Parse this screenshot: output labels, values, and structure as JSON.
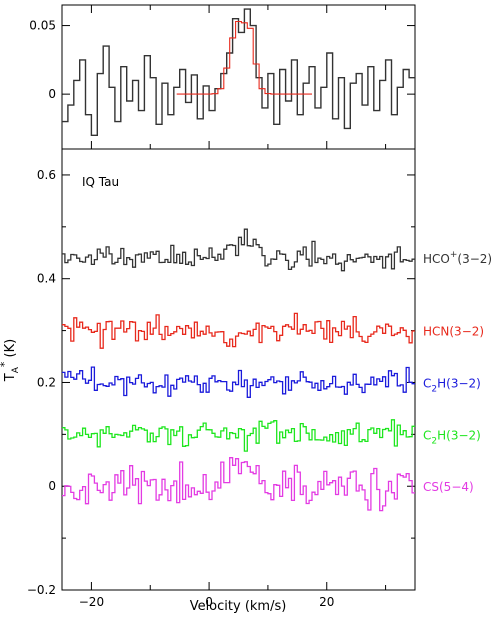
{
  "chart_data": [
    {
      "type": "line",
      "panel": "top",
      "step": true,
      "xlim": [
        -25,
        35
      ],
      "ylim": [
        -0.04,
        0.065
      ],
      "y_ticks": [
        0,
        0.05
      ],
      "y_tick_labels": [
        "0",
        "0.05"
      ],
      "series": [
        {
          "color": "#333333",
          "x": [
            -24.5,
            -23.5,
            -22.5,
            -21.5,
            -20.5,
            -19.5,
            -18.5,
            -17.5,
            -16.5,
            -15.5,
            -14.5,
            -13.5,
            -12.5,
            -11.5,
            -10.5,
            -9.5,
            -8.5,
            -7.5,
            -6.5,
            -5.5,
            -4.5,
            -3.5,
            -2.5,
            -1.5,
            -0.5,
            0.5,
            1.5,
            2.5,
            3.5,
            4.5,
            5.5,
            6.5,
            7.5,
            8.5,
            9.5,
            10.5,
            11.5,
            12.5,
            13.5,
            14.5,
            15.5,
            16.5,
            17.5,
            18.5,
            19.5,
            20.5,
            21.5,
            22.5,
            23.5,
            24.5,
            25.5,
            26.5,
            27.5,
            28.5,
            29.5,
            30.5,
            31.5,
            32.5,
            33.5,
            34.5
          ],
          "values": [
            -0.02,
            -0.008,
            0.01,
            0.025,
            -0.015,
            -0.03,
            0.015,
            0.035,
            0.005,
            -0.02,
            0.02,
            -0.005,
            0.01,
            -0.012,
            0.028,
            0.012,
            -0.022,
            0.008,
            -0.015,
            0.005,
            0.018,
            -0.006,
            0.014,
            -0.018,
            0.006,
            -0.012,
            0.004,
            0.015,
            0.03,
            0.055,
            0.045,
            0.062,
            0.05,
            0.012,
            -0.01,
            0.015,
            -0.022,
            0.018,
            -0.005,
            0.025,
            -0.015,
            0.008,
            0.02,
            -0.01,
            0.005,
            0.03,
            -0.018,
            0.012,
            -0.025,
            0.008,
            0.015,
            -0.008,
            0.02,
            -0.012,
            0.01,
            0.025,
            -0.015,
            0.005,
            0.018,
            0.012
          ]
        },
        {
          "color": "#e8291c",
          "x": [
            -5,
            -4,
            -3,
            -2,
            -1,
            0,
            1,
            2,
            3,
            4,
            5,
            6,
            7,
            8,
            9,
            10,
            11,
            12,
            13,
            14,
            15,
            16,
            17
          ],
          "values": [
            0,
            0,
            0,
            0,
            0,
            0,
            0.0003,
            0.004,
            0.019,
            0.041,
            0.053,
            0.052,
            0.048,
            0.022,
            0.004,
            0.0004,
            0,
            0,
            0,
            0,
            0,
            0,
            0
          ]
        }
      ]
    },
    {
      "type": "line",
      "panel": "bottom",
      "step": true,
      "title": "IQ Tau",
      "xlabel": "Velocity (km/s)",
      "ylabel": "T_A* (K)",
      "xlim": [
        -25,
        35
      ],
      "ylim": [
        -0.2,
        0.65
      ],
      "x_ticks": [
        -20,
        0,
        20
      ],
      "x_tick_labels": [
        "−20",
        "0",
        "20"
      ],
      "y_ticks": [
        -0.2,
        0,
        0.2,
        0.4,
        0.6
      ],
      "y_tick_labels": [
        "−0.2",
        "0",
        "0.2",
        "0.4",
        "0.6"
      ],
      "series": [
        {
          "name": "HCO+(3−2)",
          "label_main": "HCO",
          "label_sup": "+",
          "label_tail": "(3−2)",
          "offset": 0.44,
          "color": "#333333",
          "noise": 0.011,
          "seed": 11,
          "peaks": [
            {
              "x": 4,
              "a": 0.025
            },
            {
              "x": 7,
              "a": 0.028
            }
          ]
        },
        {
          "name": "HCN(3−2)",
          "label_main": "HCN(3−2)",
          "label_sup": "",
          "label_tail": "",
          "offset": 0.3,
          "color": "#e8291c",
          "noise": 0.014,
          "seed": 23,
          "peaks": []
        },
        {
          "name": "C2H(3−2)",
          "label_main": "C",
          "label_sub": "2",
          "label_tail": "H(3−2)",
          "offset": 0.2,
          "color": "#1a1adb",
          "noise": 0.012,
          "seed": 37,
          "peaks": []
        },
        {
          "name": "C2H(3−2)",
          "label_main": "C",
          "label_sub": "2",
          "label_tail": "H(3−2)",
          "offset": 0.1,
          "color": "#1ee61e",
          "noise": 0.013,
          "seed": 41,
          "peaks": []
        },
        {
          "name": "CS(5−4)",
          "label_main": "CS(5−4)",
          "label_sup": "",
          "label_tail": "",
          "offset": 0.0,
          "color": "#e33be3",
          "noise": 0.02,
          "seed": 53,
          "peaks": [
            {
              "x": 4,
              "a": 0.03
            },
            {
              "x": 7,
              "a": 0.025
            }
          ]
        }
      ]
    }
  ]
}
